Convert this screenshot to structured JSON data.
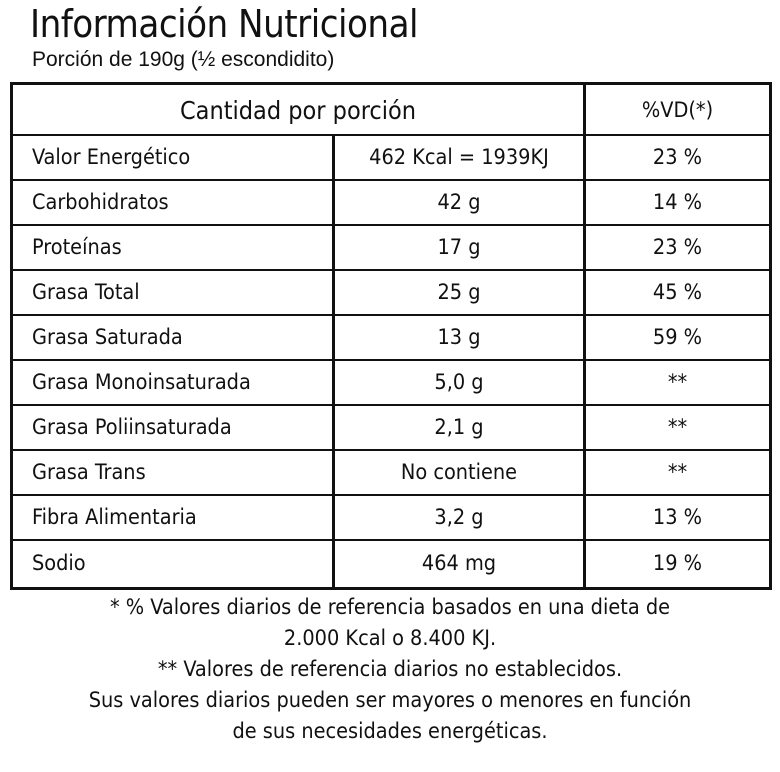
{
  "title": "Información Nutricional",
  "serving": "Porción de 190g (½ escondidito)",
  "table": {
    "header_amount": "Cantidad por porción",
    "header_vd": "%VD(*)",
    "rows": [
      {
        "name": "Valor Energético",
        "amount": "462 Kcal = 1939KJ",
        "vd": "23 %"
      },
      {
        "name": "Carbohidratos",
        "amount": "42 g",
        "vd": "14 %"
      },
      {
        "name": "Proteínas",
        "amount": "17 g",
        "vd": "23 %"
      },
      {
        "name": "Grasa Total",
        "amount": "25 g",
        "vd": "45 %"
      },
      {
        "name": "Grasa Saturada",
        "amount": "13 g",
        "vd": "59 %"
      },
      {
        "name": "Grasa Monoinsaturada",
        "amount": "5,0 g",
        "vd": "**"
      },
      {
        "name": "Grasa Poliinsaturada",
        "amount": "2,1 g",
        "vd": "**"
      },
      {
        "name": "Grasa Trans",
        "amount": "No contiene",
        "vd": "**"
      },
      {
        "name": "Fibra Alimentaria",
        "amount": "3,2 g",
        "vd": "13 %"
      },
      {
        "name": "Sodio",
        "amount": "464 mg",
        "vd": "19 %"
      }
    ]
  },
  "footnotes": [
    "* % Valores diarios de referencia basados en una dieta de",
    "2.000 Kcal o 8.400 KJ.",
    "** Valores de referencia diarios no establecidos.",
    "Sus valores diarios pueden ser mayores o menores en función",
    "de sus necesidades energéticas."
  ]
}
